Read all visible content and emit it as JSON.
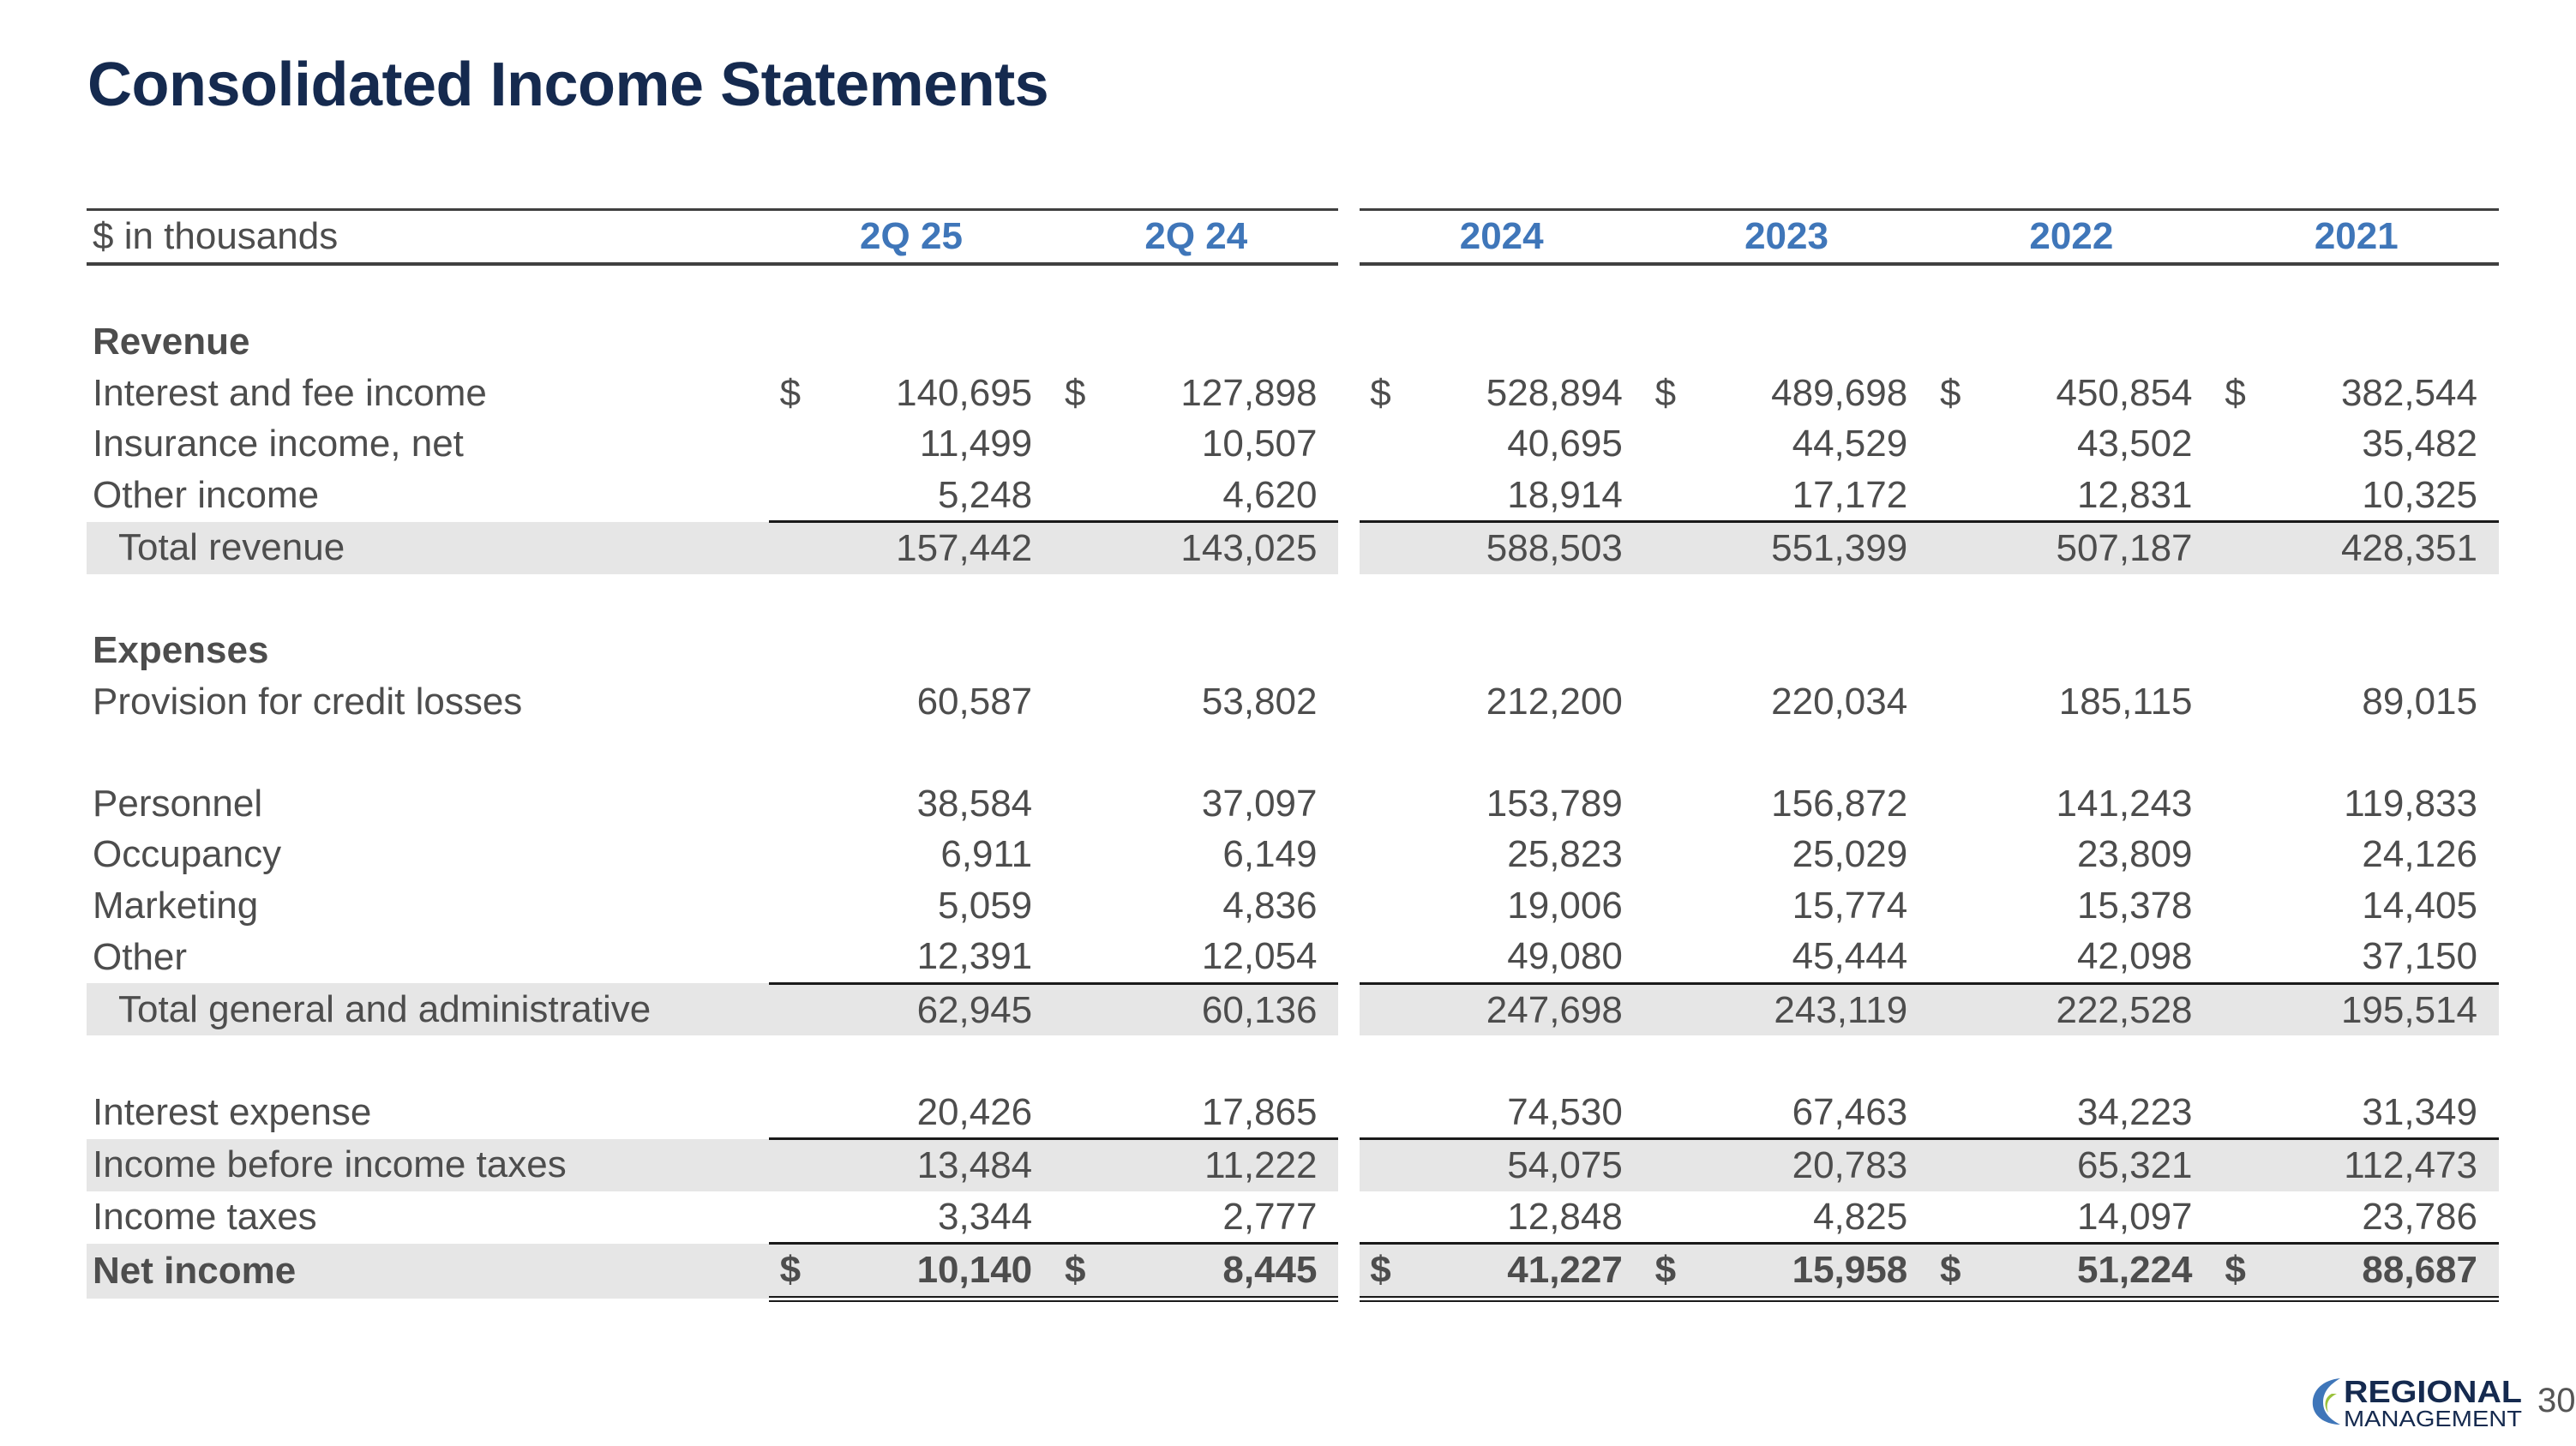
{
  "title": "Consolidated Income Statements",
  "page_number": "30",
  "brand": {
    "line1": "REGIONAL",
    "line2": "MANAGEMENT",
    "navy": "#152a4f",
    "blue": "#3f76b9",
    "green": "#9bc23c"
  },
  "header": {
    "label": "$ in thousands",
    "periods": [
      "2Q 25",
      "2Q 24",
      "2024",
      "2023",
      "2022",
      "2021"
    ]
  },
  "currency_symbol": "$",
  "rows": {
    "revenue_heading": "Revenue",
    "interest_fee": {
      "label": "Interest and fee income",
      "values": [
        "140,695",
        "127,898",
        "528,894",
        "489,698",
        "450,854",
        "382,544"
      ]
    },
    "insurance": {
      "label": "Insurance income, net",
      "values": [
        "11,499",
        "10,507",
        "40,695",
        "44,529",
        "43,502",
        "35,482"
      ]
    },
    "other_income": {
      "label": "Other income",
      "values": [
        "5,248",
        "4,620",
        "18,914",
        "17,172",
        "12,831",
        "10,325"
      ]
    },
    "total_revenue": {
      "label": "Total revenue",
      "values": [
        "157,442",
        "143,025",
        "588,503",
        "551,399",
        "507,187",
        "428,351"
      ]
    },
    "expenses_heading": "Expenses",
    "provision": {
      "label": "Provision for credit losses",
      "values": [
        "60,587",
        "53,802",
        "212,200",
        "220,034",
        "185,115",
        "89,015"
      ]
    },
    "personnel": {
      "label": "Personnel",
      "values": [
        "38,584",
        "37,097",
        "153,789",
        "156,872",
        "141,243",
        "119,833"
      ]
    },
    "occupancy": {
      "label": "Occupancy",
      "values": [
        "6,911",
        "6,149",
        "25,823",
        "25,029",
        "23,809",
        "24,126"
      ]
    },
    "marketing": {
      "label": "Marketing",
      "values": [
        "5,059",
        "4,836",
        "19,006",
        "15,774",
        "15,378",
        "14,405"
      ]
    },
    "other_exp": {
      "label": "Other",
      "values": [
        "12,391",
        "12,054",
        "49,080",
        "45,444",
        "42,098",
        "37,150"
      ]
    },
    "total_ga": {
      "label": "Total general and administrative",
      "values": [
        "62,945",
        "60,136",
        "247,698",
        "243,119",
        "222,528",
        "195,514"
      ]
    },
    "interest_expense": {
      "label": "Interest expense",
      "values": [
        "20,426",
        "17,865",
        "74,530",
        "67,463",
        "34,223",
        "31,349"
      ]
    },
    "income_before_tax": {
      "label": "Income before income taxes",
      "values": [
        "13,484",
        "11,222",
        "54,075",
        "20,783",
        "65,321",
        "112,473"
      ]
    },
    "income_taxes": {
      "label": "Income taxes",
      "values": [
        "3,344",
        "2,777",
        "12,848",
        "4,825",
        "14,097",
        "23,786"
      ]
    },
    "net_income": {
      "label": "Net income",
      "values": [
        "10,140",
        "8,445",
        "41,227",
        "15,958",
        "51,224",
        "88,687"
      ]
    }
  }
}
